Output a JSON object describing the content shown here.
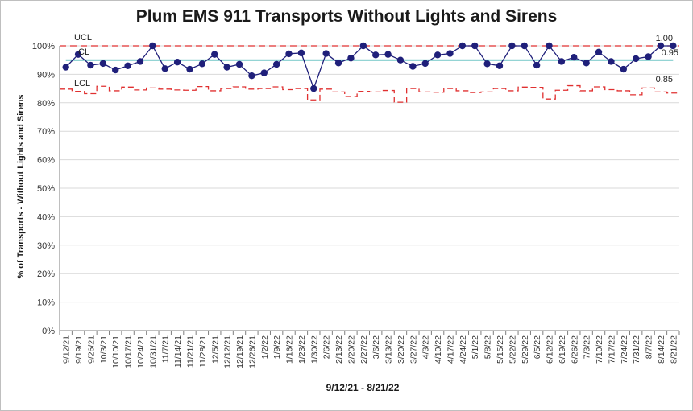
{
  "chart_data": {
    "type": "line",
    "title": "Plum EMS 911 Transports Without Lights and Sirens",
    "xlabel": "9/12/21 - 8/21/22",
    "ylabel": "% of Transports - Without Lights and Sirens",
    "ylim": [
      0,
      1
    ],
    "yticks": [
      "0%",
      "10%",
      "20%",
      "30%",
      "40%",
      "50%",
      "60%",
      "70%",
      "80%",
      "90%",
      "100%"
    ],
    "ytick_values": [
      0,
      0.1,
      0.2,
      0.3,
      0.4,
      0.5,
      0.6,
      0.7,
      0.8,
      0.9,
      1.0
    ],
    "xtick_labels": [
      "9/12/21",
      "9/19/21",
      "9/26/21",
      "10/3/21",
      "10/10/21",
      "10/17/21",
      "10/24/21",
      "10/31/21",
      "11/7/21",
      "11/14/21",
      "11/21/21",
      "11/28/21",
      "12/5/21",
      "12/12/21",
      "12/19/21",
      "12/26/21",
      "1/2/22",
      "1/9/22",
      "1/16/22",
      "1/23/22",
      "1/30/22",
      "2/6/22",
      "2/13/22",
      "2/20/22",
      "2/27/22",
      "3/6/22",
      "3/13/22",
      "3/20/22",
      "3/27/22",
      "4/3/22",
      "4/10/22",
      "4/17/22",
      "4/24/22",
      "5/1/22",
      "5/8/22",
      "5/15/22",
      "5/22/22",
      "5/29/22",
      "6/5/22",
      "6/12/22",
      "6/19/22",
      "6/26/22",
      "7/3/22",
      "7/10/22",
      "7/17/22",
      "7/24/22",
      "7/31/22",
      "8/7/22",
      "8/14/22",
      "8/21/22"
    ],
    "series": [
      {
        "name": "",
        "color": "#1f1f7a",
        "values": [
          0.925,
          0.97,
          0.932,
          0.938,
          0.915,
          0.93,
          0.945,
          1.0,
          0.92,
          0.943,
          0.918,
          0.937,
          0.97,
          0.925,
          0.935,
          0.895,
          0.905,
          0.935,
          0.972,
          0.975,
          0.85,
          0.973,
          0.94,
          0.957,
          1.0,
          0.968,
          0.97,
          0.95,
          0.928,
          0.938,
          0.968,
          0.973,
          1.0,
          1.0,
          0.937,
          0.93,
          1.0,
          1.0,
          0.932,
          1.0,
          0.945,
          0.96,
          0.94,
          0.978,
          0.945,
          0.918,
          0.955,
          0.962,
          1.0,
          1.0
        ]
      },
      {
        "name": "",
        "color": "#2aa8a8",
        "values": [
          0.95,
          0.95,
          0.95,
          0.95,
          0.95,
          0.95,
          0.95,
          0.95,
          0.95,
          0.95,
          0.95,
          0.95,
          0.95,
          0.95,
          0.95,
          0.95,
          0.95,
          0.95,
          0.95,
          0.95,
          0.95,
          0.95,
          0.95,
          0.95,
          0.95,
          0.95,
          0.95,
          0.95,
          0.95,
          0.95,
          0.95,
          0.95,
          0.95,
          0.95,
          0.95,
          0.95,
          0.95,
          0.95,
          0.95,
          0.95,
          0.95,
          0.95,
          0.95,
          0.95,
          0.95,
          0.95,
          0.95,
          0.95,
          0.95,
          0.95
        ]
      },
      {
        "name": "",
        "color": "#e03030",
        "values": [
          1,
          1,
          1,
          1,
          1,
          1,
          1,
          1,
          1,
          1,
          1,
          1,
          1,
          1,
          1,
          1,
          1,
          1,
          1,
          1,
          1,
          1,
          1,
          1,
          1,
          1,
          1,
          1,
          1,
          1,
          1,
          1,
          1,
          1,
          1,
          1,
          1,
          1,
          1,
          1,
          1,
          1,
          1,
          1,
          1,
          1,
          1,
          1,
          1,
          1
        ]
      },
      {
        "name": "",
        "color": "#e03030",
        "values": [
          0.848,
          0.84,
          0.832,
          0.858,
          0.842,
          0.855,
          0.845,
          0.852,
          0.848,
          0.845,
          0.844,
          0.857,
          0.842,
          0.85,
          0.856,
          0.848,
          0.85,
          0.856,
          0.846,
          0.85,
          0.81,
          0.848,
          0.838,
          0.822,
          0.84,
          0.838,
          0.843,
          0.802,
          0.85,
          0.838,
          0.837,
          0.85,
          0.842,
          0.836,
          0.838,
          0.85,
          0.842,
          0.855,
          0.854,
          0.813,
          0.844,
          0.86,
          0.842,
          0.856,
          0.846,
          0.842,
          0.828,
          0.852,
          0.838,
          0.834
        ]
      }
    ],
    "annotations": {
      "ucl_label": "UCL",
      "cl_label": "CL",
      "lcl_label": "LCL",
      "ucl_value": "1.00",
      "cl_value": "0.95",
      "lcl_value": "0.85"
    },
    "legend": "none",
    "grid": true
  }
}
